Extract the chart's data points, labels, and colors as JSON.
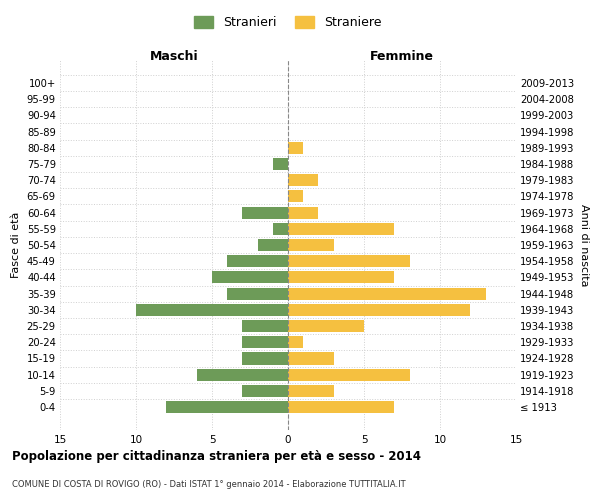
{
  "age_groups": [
    "100+",
    "95-99",
    "90-94",
    "85-89",
    "80-84",
    "75-79",
    "70-74",
    "65-69",
    "60-64",
    "55-59",
    "50-54",
    "45-49",
    "40-44",
    "35-39",
    "30-34",
    "25-29",
    "20-24",
    "15-19",
    "10-14",
    "5-9",
    "0-4"
  ],
  "birth_years": [
    "≤ 1913",
    "1914-1918",
    "1919-1923",
    "1924-1928",
    "1929-1933",
    "1934-1938",
    "1939-1943",
    "1944-1948",
    "1949-1953",
    "1954-1958",
    "1959-1963",
    "1964-1968",
    "1969-1973",
    "1974-1978",
    "1979-1983",
    "1984-1988",
    "1989-1993",
    "1994-1998",
    "1999-2003",
    "2004-2008",
    "2009-2013"
  ],
  "maschi": [
    0,
    0,
    0,
    0,
    0,
    1,
    0,
    0,
    3,
    1,
    2,
    4,
    5,
    4,
    10,
    3,
    3,
    3,
    6,
    3,
    8
  ],
  "femmine": [
    0,
    0,
    0,
    0,
    1,
    0,
    2,
    1,
    2,
    7,
    3,
    8,
    7,
    13,
    12,
    5,
    1,
    3,
    8,
    3,
    7
  ],
  "color_maschi": "#6d9b58",
  "color_femmine": "#f5c040",
  "title": "Popolazione per cittadinanza straniera per età e sesso - 2014",
  "subtitle": "COMUNE DI COSTA DI ROVIGO (RO) - Dati ISTAT 1° gennaio 2014 - Elaborazione TUTTITALIA.IT",
  "xlabel_left": "Maschi",
  "xlabel_right": "Femmine",
  "ylabel_left": "Fasce di età",
  "ylabel_right": "Anni di nascita",
  "legend_maschi": "Stranieri",
  "legend_femmine": "Straniere",
  "xlim": 15,
  "bg_color": "#ffffff",
  "grid_color": "#d0d0d0"
}
